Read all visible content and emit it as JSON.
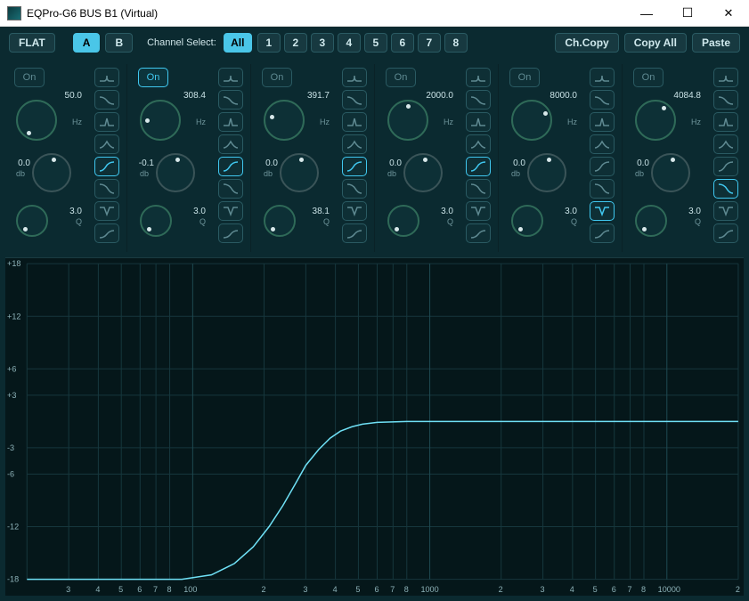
{
  "window": {
    "title": "EQPro-G6 BUS B1 (Virtual)"
  },
  "toolbar": {
    "flat": "FLAT",
    "preset_a": "A",
    "preset_b": "B",
    "channel_select_label": "Channel Select:",
    "all": "All",
    "channels": [
      "1",
      "2",
      "3",
      "4",
      "5",
      "6",
      "7",
      "8"
    ],
    "ch_copy": "Ch.Copy",
    "copy_all": "Copy All",
    "paste": "Paste"
  },
  "colors": {
    "background": "#0b2a30",
    "panel": "#0e2f35",
    "accent": "#40c8f0",
    "knob_ring": "#2f6a58",
    "text": "#c9e2e6",
    "grid": "#16373d",
    "curve": "#6fe0f5"
  },
  "filter_shapes": [
    "bell",
    "lowshelf",
    "peak-narrow",
    "peak-wide",
    "highpass",
    "lowpass",
    "notch",
    "highshelf"
  ],
  "bands": [
    {
      "on": false,
      "on_label": "On",
      "freq": "50.0",
      "freq_unit": "Hz",
      "gain": "0.0",
      "gain_unit": "db",
      "q": "3.0",
      "q_unit": "Q",
      "active_shape": 4,
      "knob_angle": -140
    },
    {
      "on": true,
      "on_label": "On",
      "freq": "308.4",
      "freq_unit": "Hz",
      "gain": "-0.1",
      "gain_unit": "db",
      "q": "3.0",
      "q_unit": "Q",
      "active_shape": 4,
      "knob_angle": -85
    },
    {
      "on": false,
      "on_label": "On",
      "freq": "391.7",
      "freq_unit": "Hz",
      "gain": "0.0",
      "gain_unit": "db",
      "q": "38.1",
      "q_unit": "Q",
      "active_shape": 4,
      "knob_angle": -70
    },
    {
      "on": false,
      "on_label": "On",
      "freq": "2000.0",
      "freq_unit": "Hz",
      "gain": "0.0",
      "gain_unit": "db",
      "q": "3.0",
      "q_unit": "Q",
      "active_shape": 4,
      "knob_angle": -5
    },
    {
      "on": false,
      "on_label": "On",
      "freq": "8000.0",
      "freq_unit": "Hz",
      "gain": "0.0",
      "gain_unit": "db",
      "q": "3.0",
      "q_unit": "Q",
      "active_shape": 6,
      "knob_angle": 55
    },
    {
      "on": false,
      "on_label": "On",
      "freq": "4084.8",
      "freq_unit": "Hz",
      "gain": "0.0",
      "gain_unit": "db",
      "q": "3.0",
      "q_unit": "Q",
      "active_shape": 5,
      "knob_angle": 25
    }
  ],
  "plot": {
    "y_ticks": [
      18,
      12,
      6,
      3,
      -3,
      -6,
      -12,
      -18
    ],
    "y_labels": [
      "+18",
      "+12",
      "+6",
      "+3",
      "-3",
      "-6",
      "-12",
      "-18"
    ],
    "x_major": [
      100,
      1000,
      10000
    ],
    "x_labels_major": [
      "100",
      "1000",
      "10000"
    ],
    "x_minor": [
      2,
      3,
      4,
      5,
      6,
      7,
      8,
      20,
      30,
      40,
      50,
      60,
      70,
      80,
      200,
      300,
      400,
      500,
      600,
      700,
      800,
      2000,
      3000,
      4000,
      5000,
      6000,
      7000,
      8000,
      20000
    ],
    "x_minor_labels": [
      "2",
      "3",
      "4",
      "5",
      "6",
      "7",
      "8",
      "",
      "3",
      "4",
      "5",
      "6",
      "7",
      "8",
      "2",
      "3",
      "4",
      "5",
      "6",
      "7",
      "8",
      "2",
      "3",
      "4",
      "5",
      "6",
      "7",
      "8",
      "2"
    ],
    "xlim": [
      20,
      20000
    ],
    "ylim": [
      -18,
      18
    ],
    "curve_points": [
      [
        20,
        -18
      ],
      [
        60,
        -18
      ],
      [
        90,
        -18
      ],
      [
        120,
        -17.5
      ],
      [
        150,
        -16.2
      ],
      [
        180,
        -14.3
      ],
      [
        210,
        -12
      ],
      [
        240,
        -9.6
      ],
      [
        270,
        -7.2
      ],
      [
        300,
        -5
      ],
      [
        340,
        -3.2
      ],
      [
        380,
        -1.9
      ],
      [
        420,
        -1.1
      ],
      [
        470,
        -0.6
      ],
      [
        520,
        -0.3
      ],
      [
        600,
        -0.1
      ],
      [
        800,
        0
      ],
      [
        20000,
        0
      ]
    ]
  }
}
